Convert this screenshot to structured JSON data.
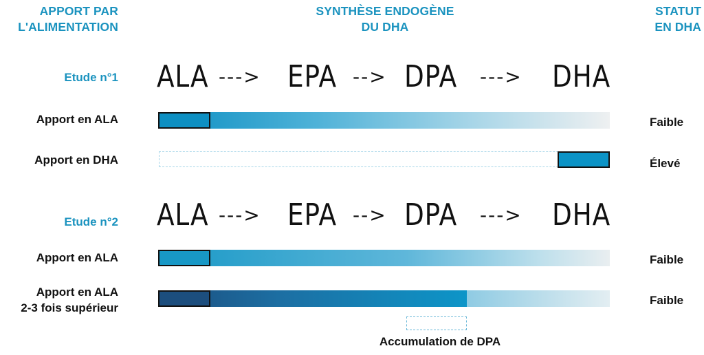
{
  "headers": {
    "left": [
      "APPORT PAR",
      "L'ALIMENTATION"
    ],
    "middle": [
      "SYNTHÈSE ENDOGÈNE",
      "DU DHA"
    ],
    "right": [
      "STATUT",
      "EN DHA"
    ]
  },
  "pathway": {
    "steps": [
      "ALA",
      "EPA",
      "DPA",
      "DHA"
    ],
    "arrows": [
      "--->",
      "-->",
      "--->"
    ]
  },
  "study1": {
    "title": "Etude n°1",
    "rows": [
      {
        "label": "Apport en ALA",
        "status": "Faible"
      },
      {
        "label": "Apport en DHA",
        "status": "Élevé"
      }
    ]
  },
  "study2": {
    "title": "Etude n°2",
    "rows": [
      {
        "label": "Apport en ALA",
        "status": "Faible"
      },
      {
        "label": [
          "Apport en ALA",
          "2-3 fois supérieur"
        ],
        "status": "Faible"
      }
    ],
    "annotation": "Accumulation de DPA"
  },
  "colors": {
    "accent": "#1b93bf",
    "bar_blue": "#0b93c6",
    "bar_dark": "#1c4e7e",
    "dashed": "#a5d5e8"
  }
}
